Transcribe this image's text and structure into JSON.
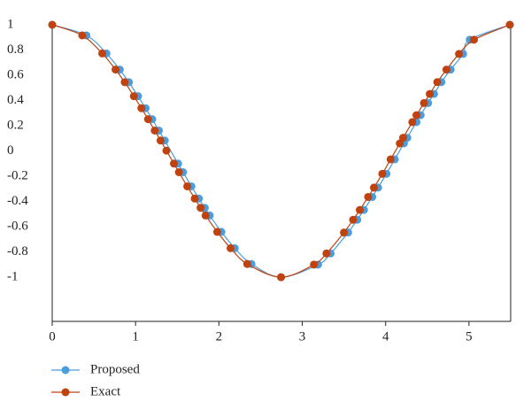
{
  "chart_data": {
    "type": "line",
    "xlim": [
      0,
      5.5
    ],
    "xticks": [
      0,
      1,
      2,
      3,
      4,
      5
    ],
    "ylim": [
      -1.35,
      1
    ],
    "yticks": [
      -1,
      -0.8,
      -0.6,
      -0.4,
      -0.2,
      0,
      0.2,
      0.4,
      0.6,
      0.8,
      1
    ],
    "legend": "bottom-left",
    "series": [
      {
        "name": "Proposed",
        "color": "#4a9ede",
        "x": [
          0,
          0.41,
          0.65,
          0.81,
          0.92,
          1.03,
          1.12,
          1.2,
          1.28,
          1.35,
          1.51,
          1.57,
          1.67,
          1.76,
          1.83,
          1.89,
          2.03,
          2.19,
          2.39,
          2.745,
          3.19,
          3.34,
          3.55,
          3.66,
          3.74,
          3.84,
          3.91,
          4.01,
          4.11,
          4.22,
          4.26,
          4.37,
          4.42,
          4.51,
          4.58,
          4.67,
          4.78,
          4.93,
          5.01,
          5.49
        ],
        "values": [
          1,
          0.916,
          0.773,
          0.645,
          0.545,
          0.434,
          0.339,
          0.252,
          0.162,
          0.083,
          -0.1,
          -0.168,
          -0.28,
          -0.377,
          -0.45,
          -0.511,
          -0.641,
          -0.77,
          -0.895,
          -1,
          -0.9,
          -0.812,
          -0.646,
          -0.545,
          -0.467,
          -0.364,
          -0.29,
          -0.181,
          -0.066,
          0.06,
          0.105,
          0.229,
          0.284,
          0.38,
          0.452,
          0.546,
          0.645,
          0.769,
          0.882,
          1
        ]
      },
      {
        "name": "Exact",
        "color": "#c0420f",
        "x": [
          0,
          0.36,
          0.6,
          0.76,
          0.87,
          0.98,
          1.07,
          1.15,
          1.23,
          1.3,
          1.37,
          1.46,
          1.52,
          1.62,
          1.71,
          1.78,
          1.84,
          1.98,
          2.14,
          2.34,
          2.745,
          3.14,
          3.29,
          3.5,
          3.61,
          3.69,
          3.79,
          3.86,
          3.96,
          4.06,
          4.17,
          4.21,
          4.32,
          4.37,
          4.46,
          4.53,
          4.62,
          4.73,
          4.88,
          5.06,
          5.49
        ],
        "values": [
          1,
          0.916,
          0.773,
          0.645,
          0.545,
          0.434,
          0.339,
          0.252,
          0.162,
          0.083,
          0.003,
          -0.1,
          -0.168,
          -0.28,
          -0.377,
          -0.45,
          -0.511,
          -0.641,
          -0.77,
          -0.895,
          -1,
          -0.9,
          -0.812,
          -0.646,
          -0.545,
          -0.467,
          -0.364,
          -0.29,
          -0.181,
          -0.066,
          0.06,
          0.105,
          0.229,
          0.284,
          0.38,
          0.452,
          0.546,
          0.645,
          0.769,
          0.882,
          1
        ]
      }
    ]
  }
}
